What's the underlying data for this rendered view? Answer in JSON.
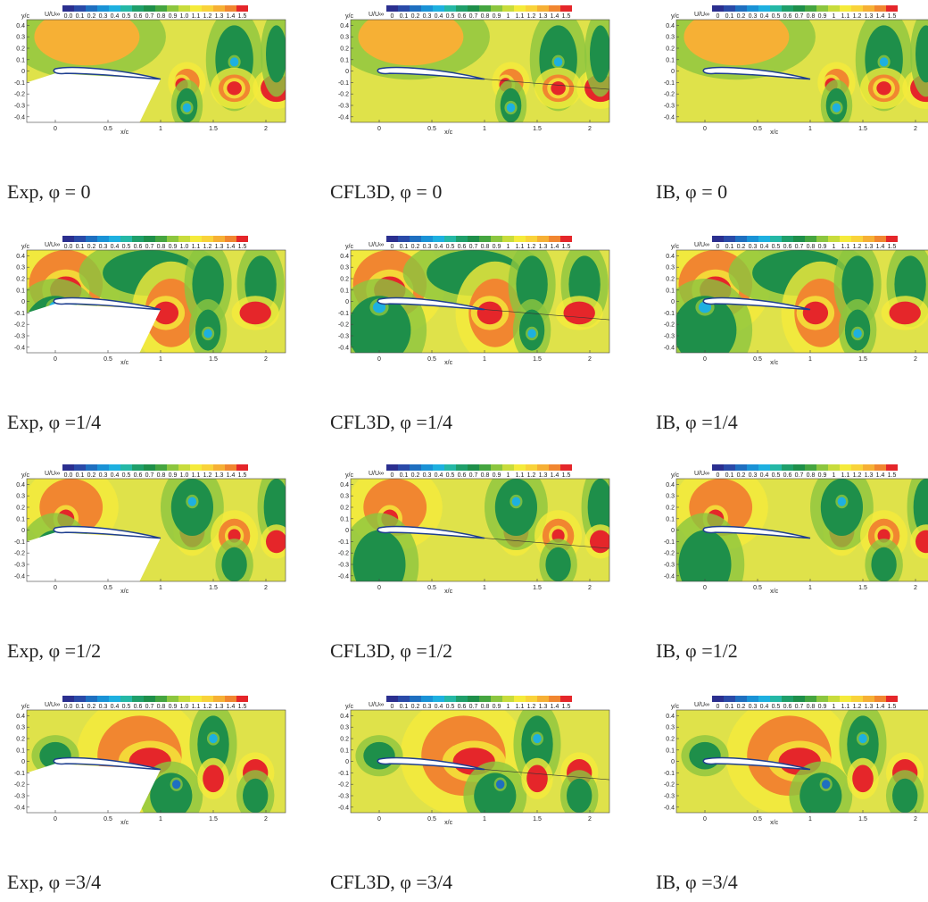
{
  "colorbar_label": "U/U∞",
  "exp_colorbar_ticks": [
    "0.0",
    "0.1",
    "0.2",
    "0.3",
    "0.4",
    "0.5",
    "0.6",
    "0.7",
    "0.8",
    "0.9",
    "1.0",
    "1.1",
    "1.2",
    "1.3",
    "1.4",
    "1.5"
  ],
  "sim_colorbar_ticks": [
    "0",
    "0.1",
    "0.2",
    "0.3",
    "0.4",
    "0.5",
    "0.6",
    "0.7",
    "0.8",
    "0.9",
    "1",
    "1.1",
    "1.2",
    "1.3",
    "1.4",
    "1.5"
  ],
  "y_axis_label": "y/c",
  "x_axis_label": "x/c",
  "y_ticks": [
    "0.4",
    "0.3",
    "0.2",
    "0.1",
    "0",
    "-0.1",
    "-0.2",
    "-0.3",
    "-0.4"
  ],
  "x_ticks": [
    "0",
    "0.5",
    "1",
    "1.5",
    "2"
  ],
  "rows": [
    {
      "captions": [
        "Exp, φ = 0",
        "CFL3D, φ = 0",
        "IB, φ = 0"
      ]
    },
    {
      "captions": [
        "Exp, φ =1/4",
        "CFL3D, φ =1/4",
        "IB, φ =1/4"
      ]
    },
    {
      "captions": [
        "Exp, φ =1/2",
        "CFL3D, φ =1/2",
        "IB, φ =1/2"
      ]
    },
    {
      "captions": [
        "Exp, φ =3/4",
        "CFL3D, φ =3/4",
        "IB, φ =3/4"
      ]
    }
  ]
}
